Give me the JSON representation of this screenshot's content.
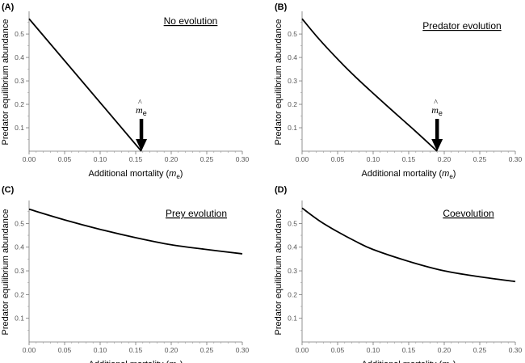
{
  "chart_data": [
    {
      "panel": "(A)",
      "type": "line",
      "title": "No evolution",
      "xlabel": "Additional mortality",
      "xlabel_symbol": "m",
      "xlabel_sub": "e",
      "ylabel": "Predator  equilibrium abundance",
      "xlim": [
        0,
        0.3
      ],
      "ylim": [
        0,
        0.59
      ],
      "x_ticks": [
        "0.00",
        "0.05",
        "0.10",
        "0.15",
        "0.20",
        "0.25",
        "0.30"
      ],
      "y_ticks": [
        "0.1",
        "0.2",
        "0.3",
        "0.4",
        "0.5"
      ],
      "series": [
        {
          "name": "abundance",
          "x": [
            0,
            0.158
          ],
          "y": [
            0.565,
            0
          ]
        }
      ],
      "annotation": {
        "symbol": "m",
        "hat": "^",
        "sub": "e",
        "x": 0.158
      }
    },
    {
      "panel": "(B)",
      "type": "line",
      "title": "Predator evolution",
      "xlabel": "Additional mortality",
      "xlabel_symbol": "m",
      "xlabel_sub": "e",
      "ylabel": "Predator  equilibrium abundance",
      "xlim": [
        0,
        0.3
      ],
      "ylim": [
        0,
        0.59
      ],
      "x_ticks": [
        "0.00",
        "0.05",
        "0.10",
        "0.15",
        "0.20",
        "0.25",
        "0.30"
      ],
      "y_ticks": [
        "0.1",
        "0.2",
        "0.3",
        "0.4",
        "0.5"
      ],
      "series": [
        {
          "name": "abundance",
          "x": [
            0,
            0.02,
            0.04,
            0.06,
            0.08,
            0.1,
            0.12,
            0.14,
            0.16,
            0.19
          ],
          "y": [
            0.565,
            0.492,
            0.425,
            0.362,
            0.303,
            0.247,
            0.192,
            0.138,
            0.084,
            0
          ]
        }
      ],
      "annotation": {
        "symbol": "m",
        "hat": "^",
        "sub": "e",
        "x": 0.19
      }
    },
    {
      "panel": "(C)",
      "type": "line",
      "title": "Prey evolution",
      "xlabel": "Additional mortality",
      "xlabel_symbol": "m",
      "xlabel_sub": "e",
      "ylabel": "Predator  equilibrium abundance",
      "xlim": [
        0,
        0.3
      ],
      "ylim": [
        0,
        0.59
      ],
      "x_ticks": [
        "0.00",
        "0.05",
        "0.10",
        "0.15",
        "0.20",
        "0.25",
        "0.30"
      ],
      "y_ticks": [
        "0.1",
        "0.2",
        "0.3",
        "0.4",
        "0.5"
      ],
      "series": [
        {
          "name": "abundance",
          "x": [
            0,
            0.05,
            0.1,
            0.15,
            0.2,
            0.25,
            0.3
          ],
          "y": [
            0.56,
            0.515,
            0.475,
            0.44,
            0.41,
            0.39,
            0.372
          ]
        }
      ]
    },
    {
      "panel": "(D)",
      "type": "line",
      "title": "Coevolution",
      "xlabel": "Additional mortality",
      "xlabel_symbol": "m",
      "xlabel_sub": "e",
      "ylabel": "Predator  equilibrium abundance",
      "xlim": [
        0,
        0.3
      ],
      "ylim": [
        0,
        0.59
      ],
      "x_ticks": [
        "0.00",
        "0.05",
        "0.10",
        "0.15",
        "0.20",
        "0.25",
        "0.30"
      ],
      "y_ticks": [
        "0.1",
        "0.2",
        "0.3",
        "0.4",
        "0.5"
      ],
      "series": [
        {
          "name": "abundance",
          "x": [
            0,
            0.025,
            0.05,
            0.075,
            0.1,
            0.15,
            0.2,
            0.25,
            0.3
          ],
          "y": [
            0.565,
            0.51,
            0.465,
            0.425,
            0.39,
            0.34,
            0.3,
            0.275,
            0.255
          ]
        }
      ]
    }
  ]
}
